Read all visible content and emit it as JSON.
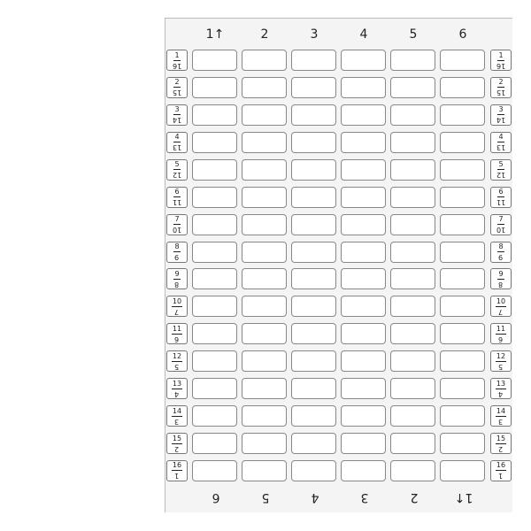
{
  "columns": [
    "1↑",
    "2",
    "3",
    "4",
    "5",
    "6"
  ],
  "rows": [
    {
      "top": "1",
      "bottom": "16"
    },
    {
      "top": "2",
      "bottom": "15"
    },
    {
      "top": "3",
      "bottom": "14"
    },
    {
      "top": "4",
      "bottom": "13"
    },
    {
      "top": "5",
      "bottom": "12"
    },
    {
      "top": "6",
      "bottom": "11"
    },
    {
      "top": "7",
      "bottom": "10"
    },
    {
      "top": "8",
      "bottom": "9"
    },
    {
      "top": "9",
      "bottom": "8"
    },
    {
      "top": "10",
      "bottom": "7"
    },
    {
      "top": "11",
      "bottom": "6"
    },
    {
      "top": "12",
      "bottom": "5"
    },
    {
      "top": "13",
      "bottom": "4"
    },
    {
      "top": "14",
      "bottom": "3"
    },
    {
      "top": "15",
      "bottom": "2"
    },
    {
      "top": "16",
      "bottom": "1"
    }
  ],
  "cells": [
    [
      "",
      "",
      "",
      "",
      "",
      ""
    ],
    [
      "",
      "",
      "",
      "",
      "",
      ""
    ],
    [
      "",
      "",
      "",
      "",
      "",
      ""
    ],
    [
      "",
      "",
      "",
      "",
      "",
      ""
    ],
    [
      "",
      "",
      "",
      "",
      "",
      ""
    ],
    [
      "",
      "",
      "",
      "",
      "",
      ""
    ],
    [
      "",
      "",
      "",
      "",
      "",
      ""
    ],
    [
      "",
      "",
      "",
      "",
      "",
      ""
    ],
    [
      "",
      "",
      "",
      "",
      "",
      ""
    ],
    [
      "",
      "",
      "",
      "",
      "",
      ""
    ],
    [
      "",
      "",
      "",
      "",
      "",
      ""
    ],
    [
      "",
      "",
      "",
      "",
      "",
      ""
    ],
    [
      "",
      "",
      "",
      "",
      "",
      ""
    ],
    [
      "",
      "",
      "",
      "",
      "",
      ""
    ],
    [
      "",
      "",
      "",
      "",
      "",
      ""
    ],
    [
      "",
      "",
      "",
      "",
      "",
      ""
    ]
  ]
}
